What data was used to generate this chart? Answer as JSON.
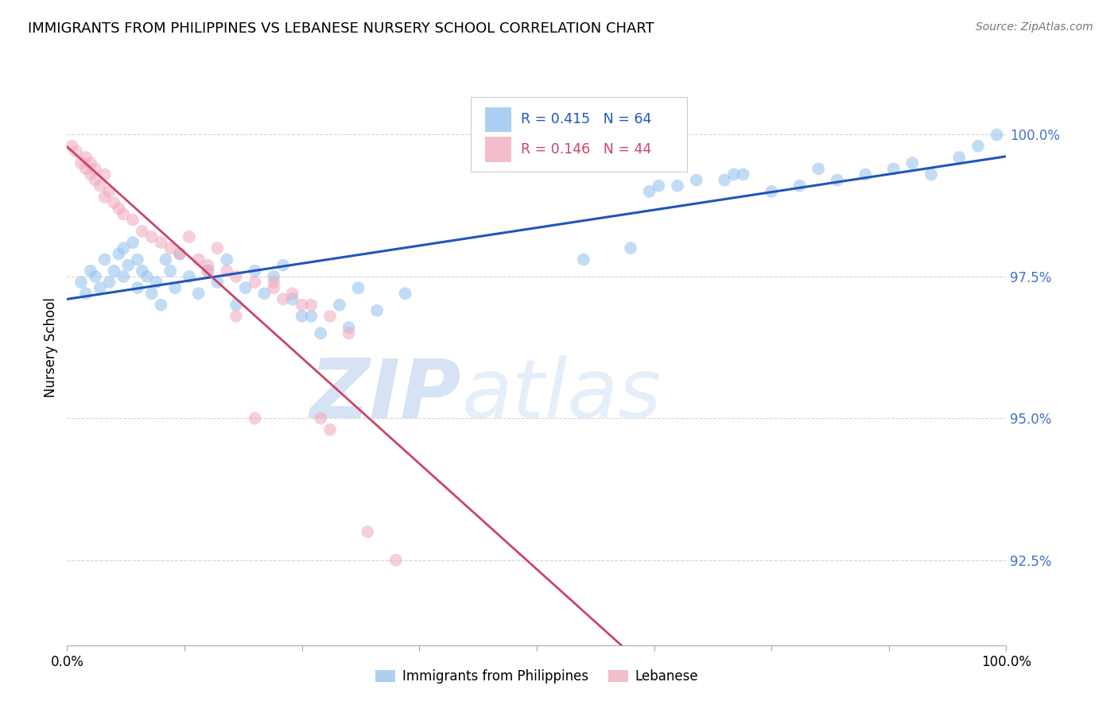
{
  "title": "IMMIGRANTS FROM PHILIPPINES VS LEBANESE NURSERY SCHOOL CORRELATION CHART",
  "source": "Source: ZipAtlas.com",
  "ylabel": "Nursery School",
  "yticks": [
    92.5,
    95.0,
    97.5,
    100.0
  ],
  "ytick_labels": [
    "92.5%",
    "95.0%",
    "97.5%",
    "100.0%"
  ],
  "xlim": [
    0.0,
    100.0
  ],
  "ylim": [
    91.0,
    101.5
  ],
  "legend_blue_r": "R = 0.415",
  "legend_blue_n": "N = 64",
  "legend_pink_r": "R = 0.146",
  "legend_pink_n": "N = 44",
  "legend_label_blue": "Immigrants from Philippines",
  "legend_label_pink": "Lebanese",
  "blue_color": "#92C0EE",
  "pink_color": "#F0A8BC",
  "trendline_blue": "#2255BB",
  "trendline_pink": "#CC4466",
  "axis_label_color": "#4472C4",
  "grid_color": "#CCCCCC",
  "title_fontsize": 13,
  "source_fontsize": 10,
  "watermark_color": "#D8E8F8",
  "blue_points_x": [
    1.5,
    2.0,
    2.5,
    3.0,
    3.5,
    4.0,
    4.5,
    5.0,
    5.5,
    6.0,
    6.0,
    6.5,
    7.0,
    7.5,
    7.5,
    8.0,
    8.5,
    9.0,
    9.5,
    10.0,
    10.5,
    11.0,
    11.5,
    12.0,
    13.0,
    14.0,
    15.0,
    16.0,
    17.0,
    18.0,
    19.0,
    20.0,
    21.0,
    22.0,
    23.0,
    25.0,
    27.0,
    29.0,
    31.0,
    33.0,
    36.0,
    30.0,
    26.0,
    24.0,
    55.0,
    60.0,
    62.0,
    65.0,
    70.0,
    72.0,
    75.0,
    78.0,
    82.0,
    85.0,
    88.0,
    90.0,
    92.0,
    95.0,
    97.0,
    99.0,
    63.0,
    67.0,
    71.0,
    80.0
  ],
  "blue_points_y": [
    97.4,
    97.2,
    97.6,
    97.5,
    97.3,
    97.8,
    97.4,
    97.6,
    97.9,
    97.5,
    98.0,
    97.7,
    98.1,
    97.3,
    97.8,
    97.6,
    97.5,
    97.2,
    97.4,
    97.0,
    97.8,
    97.6,
    97.3,
    97.9,
    97.5,
    97.2,
    97.6,
    97.4,
    97.8,
    97.0,
    97.3,
    97.6,
    97.2,
    97.5,
    97.7,
    96.8,
    96.5,
    97.0,
    97.3,
    96.9,
    97.2,
    96.6,
    96.8,
    97.1,
    97.8,
    98.0,
    99.0,
    99.1,
    99.2,
    99.3,
    99.0,
    99.1,
    99.2,
    99.3,
    99.4,
    99.5,
    99.3,
    99.6,
    99.8,
    100.0,
    99.1,
    99.2,
    99.3,
    99.4
  ],
  "pink_points_x": [
    0.5,
    1.0,
    1.5,
    2.0,
    2.0,
    2.5,
    2.5,
    3.0,
    3.0,
    3.5,
    4.0,
    4.0,
    4.5,
    5.0,
    5.5,
    6.0,
    7.0,
    8.0,
    9.0,
    10.0,
    11.0,
    12.0,
    13.0,
    14.0,
    15.0,
    16.0,
    17.0,
    18.0,
    20.0,
    22.0,
    24.0,
    26.0,
    28.0,
    30.0,
    32.0,
    35.0,
    22.0,
    25.0,
    27.0,
    28.0,
    15.0,
    20.0,
    18.0,
    23.0
  ],
  "pink_points_y": [
    99.8,
    99.7,
    99.5,
    99.6,
    99.4,
    99.3,
    99.5,
    99.2,
    99.4,
    99.1,
    99.3,
    98.9,
    99.0,
    98.8,
    98.7,
    98.6,
    98.5,
    98.3,
    98.2,
    98.1,
    98.0,
    97.9,
    98.2,
    97.8,
    97.7,
    98.0,
    97.6,
    97.5,
    97.4,
    97.3,
    97.2,
    97.0,
    96.8,
    96.5,
    93.0,
    92.5,
    97.4,
    97.0,
    95.0,
    94.8,
    97.6,
    95.0,
    96.8,
    97.1
  ]
}
